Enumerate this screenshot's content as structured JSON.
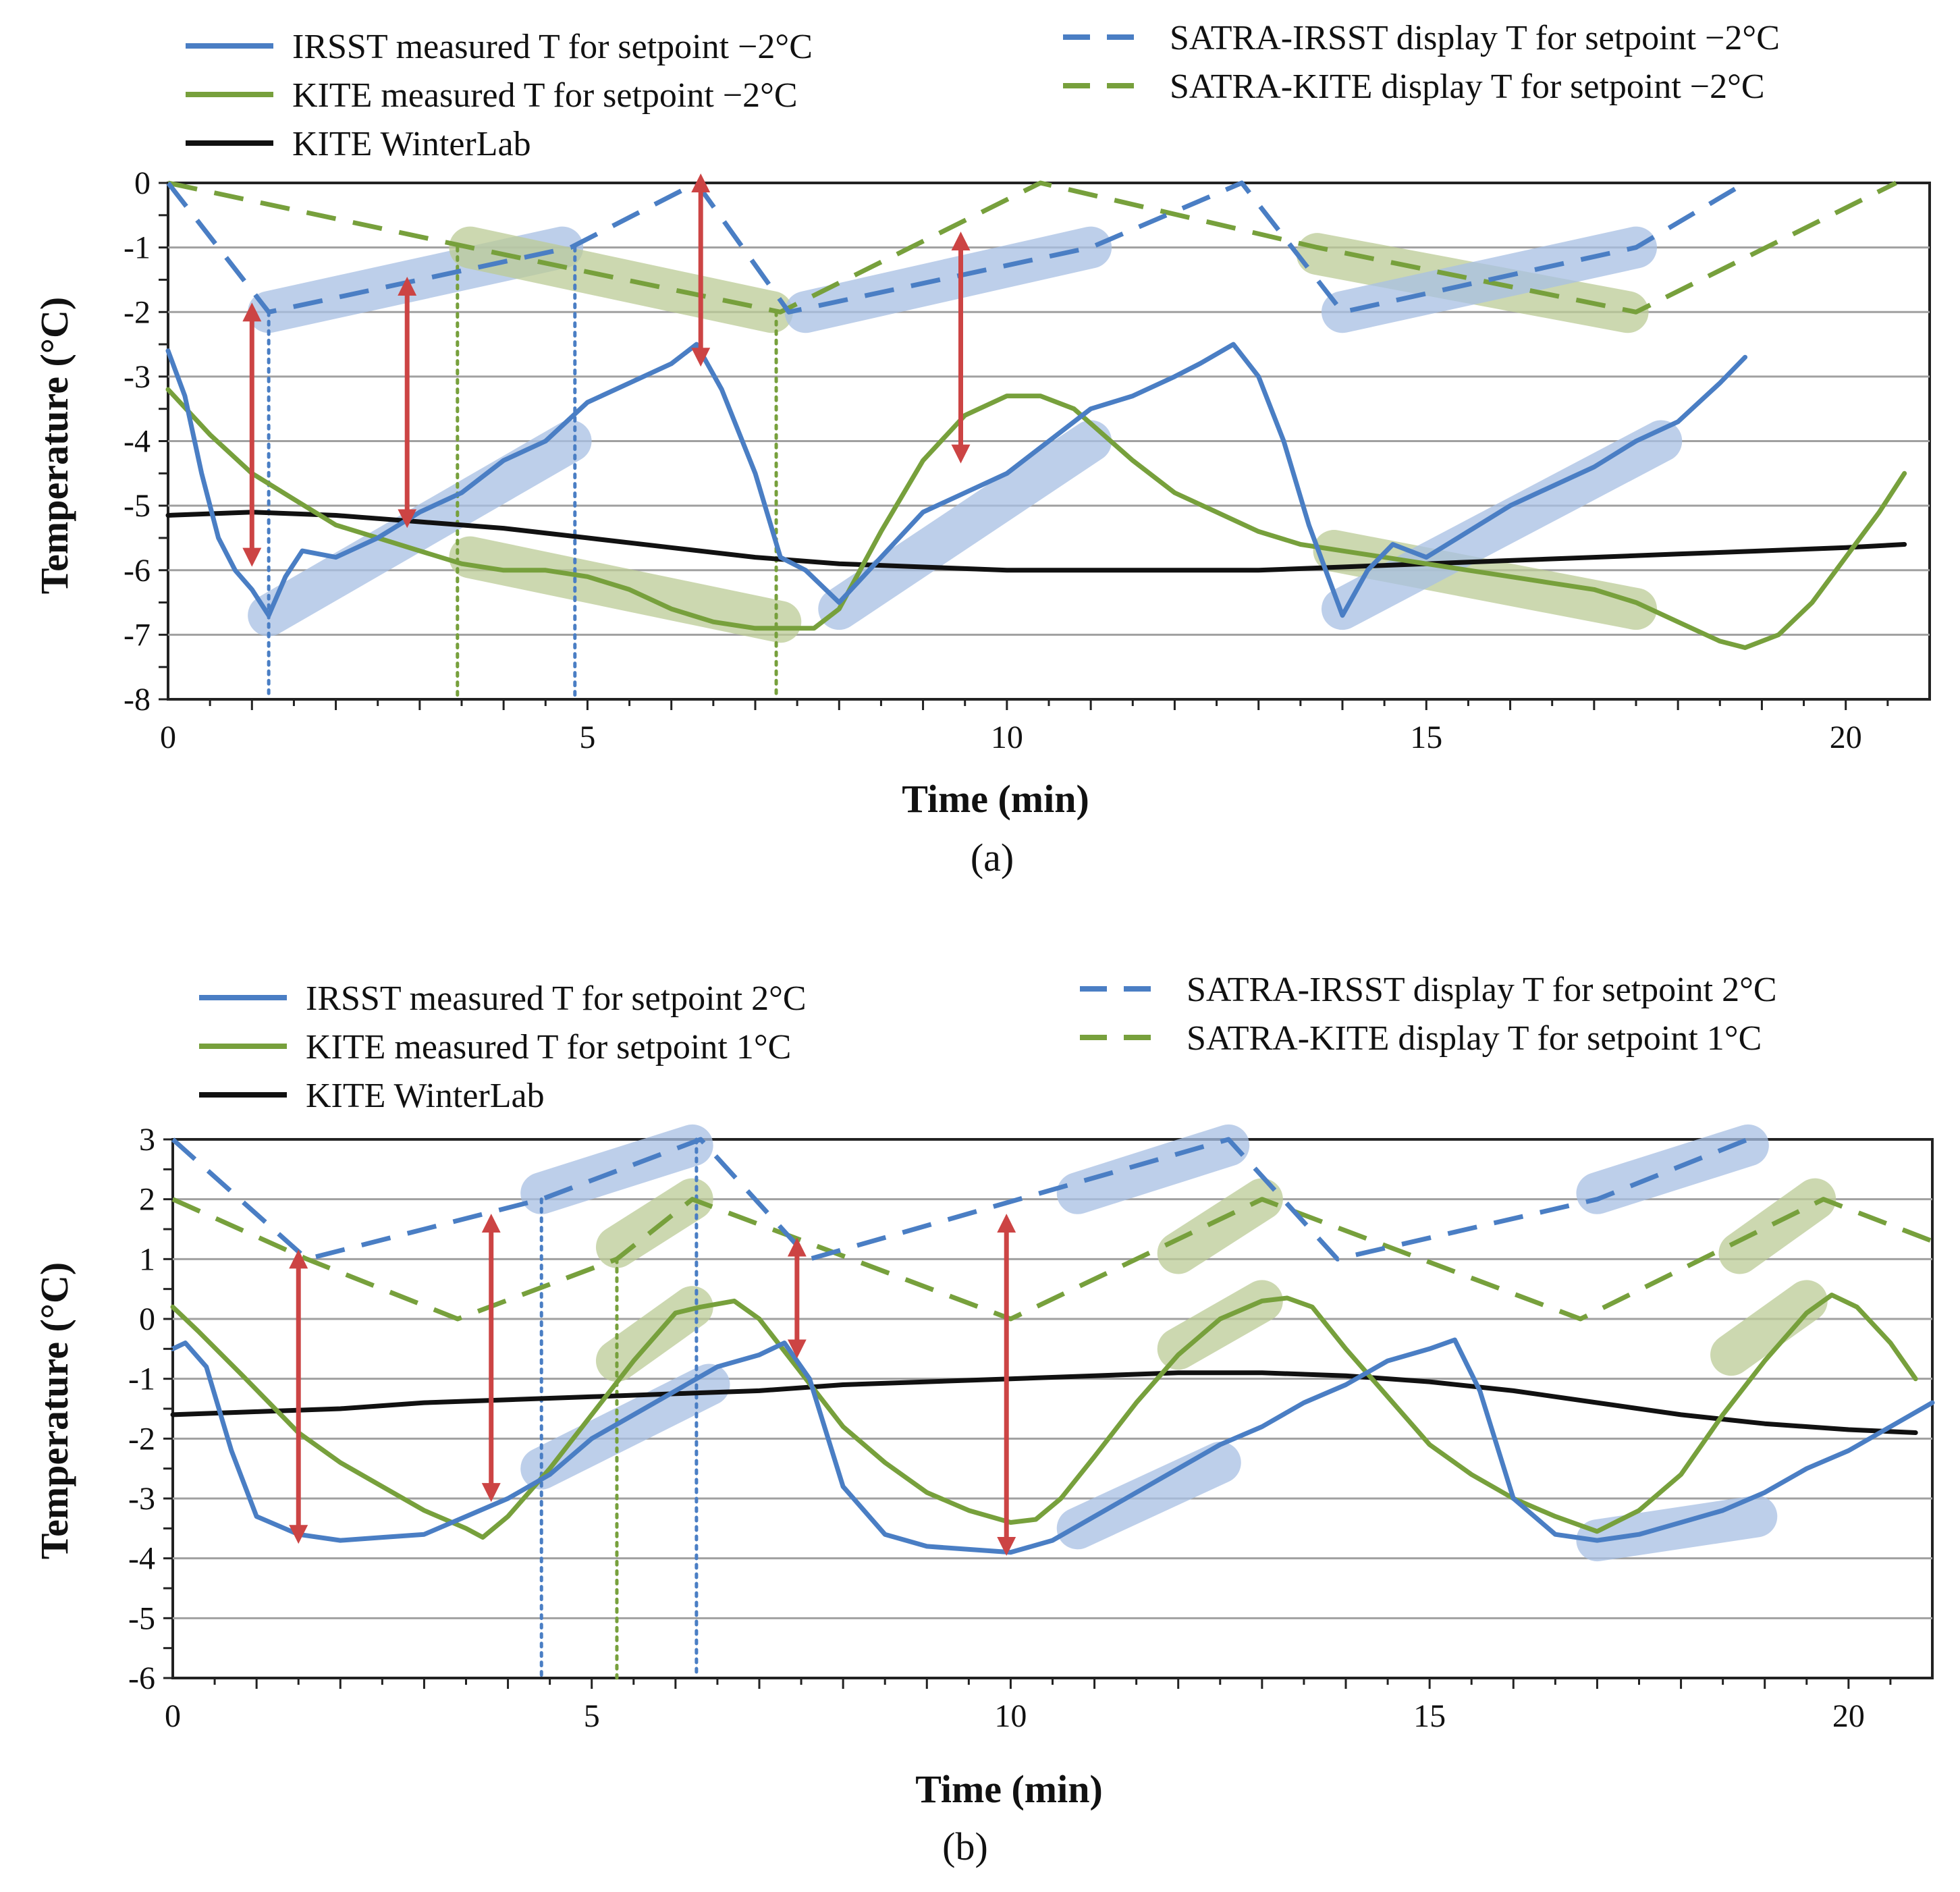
{
  "chart_data": [
    {
      "type": "line",
      "panel_label": "(a)",
      "title": "",
      "xlabel": "Time (min)",
      "ylabel": "Temperature (°C)",
      "xlim": [
        0,
        21
      ],
      "ylim": [
        -8,
        0
      ],
      "xticks": [
        0,
        5,
        10,
        15,
        20
      ],
      "yticks": [
        0,
        -1,
        -2,
        -3,
        -4,
        -5,
        -6,
        -7,
        -8
      ],
      "xtick_labels": [
        "0",
        "5",
        "10",
        "15",
        "20"
      ],
      "ytick_labels": [
        "0",
        "-1",
        "-2",
        "-3",
        "-4",
        "-5",
        "-6",
        "-7",
        "-8"
      ],
      "grid": true,
      "legend_position": "top",
      "series": [
        {
          "name": "IRSST measured T for setpoint −2°C",
          "style": "solid",
          "color": "#4a7ec4",
          "x": [
            0,
            0.2,
            0.4,
            0.6,
            0.8,
            1.0,
            1.2,
            1.4,
            1.6,
            2.0,
            2.5,
            3.0,
            3.5,
            4.0,
            4.5,
            5.0,
            5.5,
            6.0,
            6.3,
            6.6,
            7.0,
            7.3,
            7.6,
            8.0,
            8.5,
            9.0,
            9.5,
            10.0,
            10.5,
            11.0,
            11.5,
            12.0,
            12.3,
            12.7,
            13.0,
            13.3,
            13.6,
            14.0,
            14.3,
            14.6,
            15.0,
            15.5,
            16.0,
            16.5,
            17.0,
            17.5,
            18.0,
            18.5,
            18.8
          ],
          "y": [
            -2.6,
            -3.3,
            -4.5,
            -5.5,
            -6.0,
            -6.3,
            -6.7,
            -6.1,
            -5.7,
            -5.8,
            -5.5,
            -5.1,
            -4.8,
            -4.3,
            -4.0,
            -3.4,
            -3.1,
            -2.8,
            -2.5,
            -3.2,
            -4.5,
            -5.8,
            -6.0,
            -6.5,
            -5.8,
            -5.1,
            -4.8,
            -4.5,
            -4.0,
            -3.5,
            -3.3,
            -3.0,
            -2.8,
            -2.5,
            -3.0,
            -4.0,
            -5.3,
            -6.7,
            -6.0,
            -5.6,
            -5.8,
            -5.4,
            -5.0,
            -4.7,
            -4.4,
            -4.0,
            -3.7,
            -3.1,
            -2.7
          ]
        },
        {
          "name": "KITE measured T for setpoint −2°C",
          "style": "solid",
          "color": "#77a03c",
          "x": [
            0,
            0.5,
            1.0,
            1.5,
            2.0,
            2.5,
            3.0,
            3.5,
            4.0,
            4.5,
            5.0,
            5.5,
            6.0,
            6.5,
            7.0,
            7.3,
            7.7,
            8.0,
            8.5,
            9.0,
            9.5,
            10.0,
            10.4,
            10.8,
            11.5,
            12.0,
            12.5,
            13.0,
            13.5,
            14.0,
            14.5,
            15.0,
            15.5,
            16.0,
            16.5,
            17.0,
            17.5,
            18.0,
            18.5,
            18.8,
            19.2,
            19.6,
            20.0,
            20.4,
            20.7
          ],
          "y": [
            -3.2,
            -3.9,
            -4.5,
            -4.9,
            -5.3,
            -5.5,
            -5.7,
            -5.9,
            -6.0,
            -6.0,
            -6.1,
            -6.3,
            -6.6,
            -6.8,
            -6.9,
            -6.9,
            -6.9,
            -6.6,
            -5.4,
            -4.3,
            -3.6,
            -3.3,
            -3.3,
            -3.5,
            -4.3,
            -4.8,
            -5.1,
            -5.4,
            -5.6,
            -5.7,
            -5.8,
            -5.9,
            -6.0,
            -6.1,
            -6.2,
            -6.3,
            -6.5,
            -6.8,
            -7.1,
            -7.2,
            -7.0,
            -6.5,
            -5.8,
            -5.1,
            -4.5
          ]
        },
        {
          "name": "KITE WinterLab",
          "style": "solid",
          "color": "#111111",
          "x": [
            0,
            1,
            2,
            3,
            4,
            5,
            6,
            7,
            8,
            9,
            10,
            11,
            12,
            13,
            14,
            15,
            16,
            17,
            18,
            19,
            20,
            20.7
          ],
          "y": [
            -5.15,
            -5.1,
            -5.15,
            -5.25,
            -5.35,
            -5.5,
            -5.65,
            -5.8,
            -5.9,
            -5.95,
            -6.0,
            -6.0,
            -6.0,
            -6.0,
            -5.95,
            -5.9,
            -5.85,
            -5.8,
            -5.75,
            -5.7,
            -5.65,
            -5.6
          ]
        },
        {
          "name": "SATRA-IRSST display T for setpoint −2°C",
          "style": "dashed",
          "color": "#4a7ec4",
          "x": [
            0,
            1.2,
            4.8,
            6.3,
            7.4,
            11.0,
            12.8,
            14.0,
            17.5,
            18.8
          ],
          "y": [
            0,
            -2,
            -1,
            0,
            -2,
            -1,
            0,
            -2,
            -1,
            0
          ]
        },
        {
          "name": "SATRA-KITE display T for setpoint −2°C",
          "style": "dashed",
          "color": "#77a03c",
          "x": [
            0,
            3.6,
            7.3,
            10.4,
            13.7,
            17.5,
            20.6
          ],
          "y": [
            0,
            -1,
            -2,
            0,
            -1,
            -2,
            0
          ]
        }
      ]
    },
    {
      "type": "line",
      "panel_label": "(b)",
      "title": "",
      "xlabel": "Time (min)",
      "ylabel": "Temperature (°C)",
      "xlim": [
        0,
        21
      ],
      "ylim": [
        -6,
        3
      ],
      "xticks": [
        0,
        5,
        10,
        15,
        20
      ],
      "yticks": [
        3,
        2,
        1,
        0,
        -1,
        -2,
        -3,
        -4,
        -5,
        -6
      ],
      "xtick_labels": [
        "0",
        "5",
        "10",
        "15",
        "20"
      ],
      "ytick_labels": [
        "3",
        "2",
        "1",
        "0",
        "-1",
        "-2",
        "-3",
        "-4",
        "-5",
        "-6"
      ],
      "grid": true,
      "legend_position": "top",
      "series": [
        {
          "name": "IRSST measured T for setpoint 2°C",
          "style": "solid",
          "color": "#4a7ec4",
          "x": [
            0,
            0.15,
            0.4,
            0.7,
            1.0,
            1.5,
            2.0,
            2.5,
            3.0,
            3.5,
            4.0,
            4.5,
            5.0,
            5.5,
            6.0,
            6.5,
            7.0,
            7.3,
            7.6,
            8.0,
            8.5,
            9.0,
            9.5,
            10.0,
            10.5,
            11.0,
            11.5,
            12.0,
            12.5,
            13.0,
            13.5,
            14.0,
            14.5,
            15.0,
            15.3,
            15.6,
            16.0,
            16.5,
            17.0,
            17.5,
            18.0,
            18.5,
            19.0,
            19.5,
            20.0,
            20.5,
            21.0
          ],
          "y": [
            -0.5,
            -0.4,
            -0.8,
            -2.2,
            -3.3,
            -3.6,
            -3.7,
            -3.65,
            -3.6,
            -3.3,
            -3.0,
            -2.6,
            -2.0,
            -1.6,
            -1.2,
            -0.8,
            -0.6,
            -0.4,
            -1.0,
            -2.8,
            -3.6,
            -3.8,
            -3.85,
            -3.9,
            -3.7,
            -3.3,
            -2.9,
            -2.5,
            -2.1,
            -1.8,
            -1.4,
            -1.1,
            -0.7,
            -0.5,
            -0.35,
            -1.2,
            -3.0,
            -3.6,
            -3.7,
            -3.6,
            -3.4,
            -3.2,
            -2.9,
            -2.5,
            -2.2,
            -1.8,
            -1.4
          ]
        },
        {
          "name": "KITE measured T for setpoint 1°C",
          "style": "solid",
          "color": "#77a03c",
          "x": [
            0,
            0.3,
            0.8,
            1.5,
            2.0,
            2.5,
            3.0,
            3.5,
            3.7,
            4.0,
            4.5,
            5.0,
            5.5,
            6.0,
            6.3,
            6.7,
            7.0,
            7.5,
            8.0,
            8.5,
            9.0,
            9.5,
            10.0,
            10.3,
            10.6,
            11.0,
            11.5,
            12.0,
            12.5,
            13.0,
            13.3,
            13.6,
            14.0,
            14.5,
            15.0,
            15.5,
            16.0,
            16.5,
            17.0,
            17.5,
            18.0,
            18.5,
            19.0,
            19.5,
            19.8,
            20.1,
            20.5,
            20.8
          ],
          "y": [
            0.2,
            -0.2,
            -0.9,
            -1.9,
            -2.4,
            -2.8,
            -3.2,
            -3.5,
            -3.65,
            -3.3,
            -2.5,
            -1.6,
            -0.7,
            0.1,
            0.2,
            0.3,
            0.0,
            -0.9,
            -1.8,
            -2.4,
            -2.9,
            -3.2,
            -3.4,
            -3.35,
            -3.0,
            -2.3,
            -1.4,
            -0.6,
            0.0,
            0.3,
            0.35,
            0.2,
            -0.5,
            -1.3,
            -2.1,
            -2.6,
            -3.0,
            -3.3,
            -3.55,
            -3.2,
            -2.6,
            -1.6,
            -0.7,
            0.1,
            0.4,
            0.2,
            -0.4,
            -1.0
          ]
        },
        {
          "name": "KITE WinterLab",
          "style": "solid",
          "color": "#111111",
          "x": [
            0,
            1,
            2,
            3,
            4,
            5,
            6,
            7,
            8,
            9,
            10,
            11,
            12,
            13,
            14,
            15,
            16,
            17,
            18,
            19,
            20,
            20.8
          ],
          "y": [
            -1.6,
            -1.55,
            -1.5,
            -1.4,
            -1.35,
            -1.3,
            -1.25,
            -1.2,
            -1.1,
            -1.05,
            -1.0,
            -0.95,
            -0.9,
            -0.9,
            -0.95,
            -1.05,
            -1.2,
            -1.4,
            -1.6,
            -1.75,
            -1.85,
            -1.9
          ]
        },
        {
          "name": "SATRA-IRSST display T for setpoint 2°C",
          "style": "dashed",
          "color": "#4a7ec4",
          "x": [
            0,
            1.6,
            4.4,
            6.3,
            7.6,
            12.6,
            13.9,
            17.0,
            18.8
          ],
          "y": [
            3,
            1,
            2,
            3,
            1,
            3,
            1,
            2,
            3
          ]
        },
        {
          "name": "SATRA-KITE display T for setpoint 1°C",
          "style": "dashed",
          "color": "#77a03c",
          "x": [
            0,
            1.6,
            3.4,
            5.3,
            6.2,
            10.0,
            13.0,
            16.8,
            19.7,
            21.0
          ],
          "y": [
            2,
            1,
            0,
            1,
            2,
            0,
            2,
            0,
            2,
            1.3
          ]
        }
      ]
    }
  ],
  "colors": {
    "blue": "#4a7ec4",
    "green": "#77a03c",
    "black": "#111111",
    "arrow": "#cc4444",
    "grid": "#a0a0a0",
    "highlight_blue": "#a8c0e4",
    "highlight_green": "#bccb96"
  }
}
